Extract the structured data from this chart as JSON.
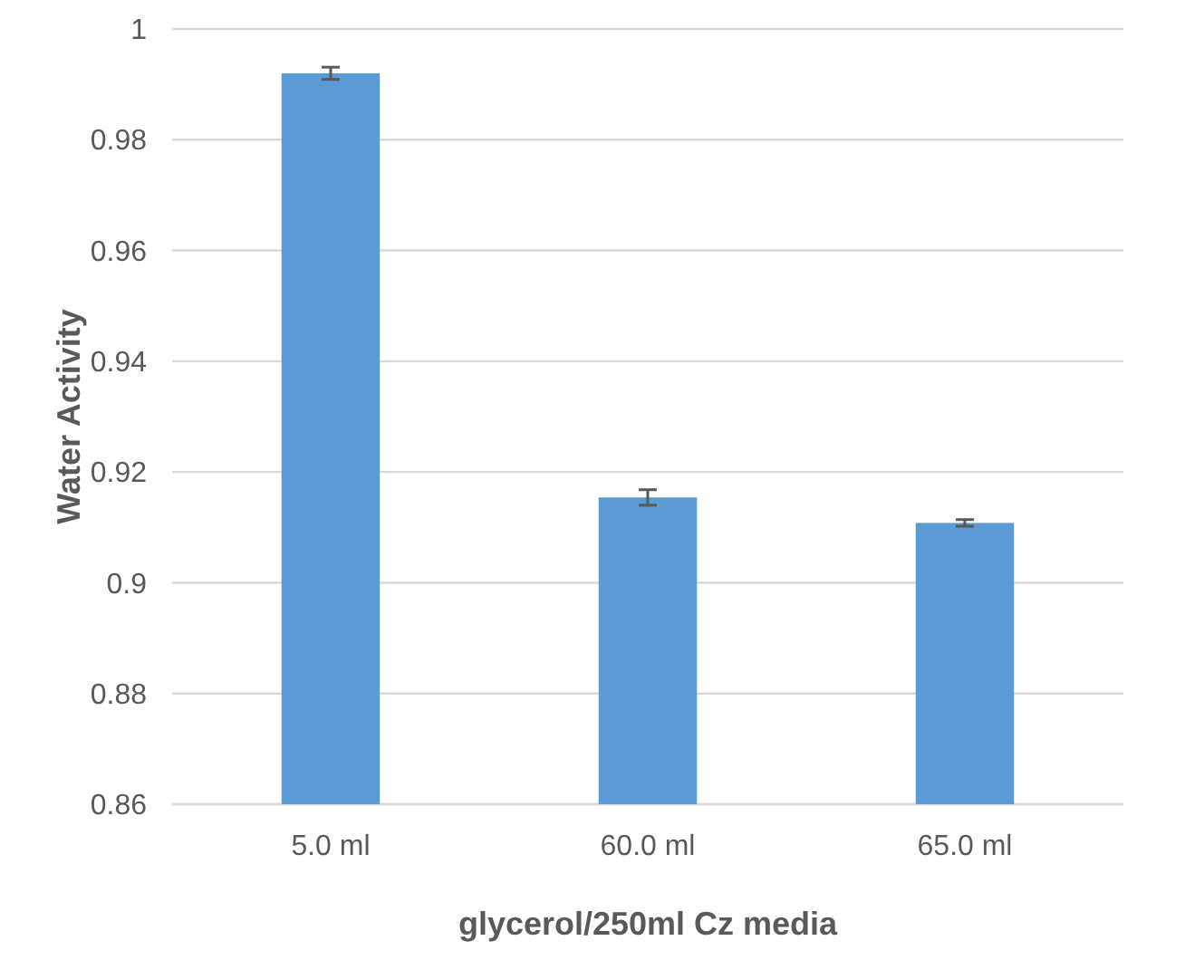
{
  "chart_data": {
    "type": "bar",
    "xlabel": "glycerol/250ml Cz media",
    "ylabel": "Water Activity",
    "categories": [
      "5.0 ml",
      "60.0 ml",
      "65.0 ml"
    ],
    "values": [
      0.992,
      0.9154,
      0.9108
    ],
    "errors": [
      0.0011,
      0.0014,
      0.0006
    ],
    "color": "#5b9bd5",
    "ylim": [
      0.86,
      1
    ],
    "yticks": [
      0.86,
      0.88,
      0.9,
      0.92,
      0.94,
      0.96,
      0.98,
      1
    ],
    "grid": "y"
  }
}
